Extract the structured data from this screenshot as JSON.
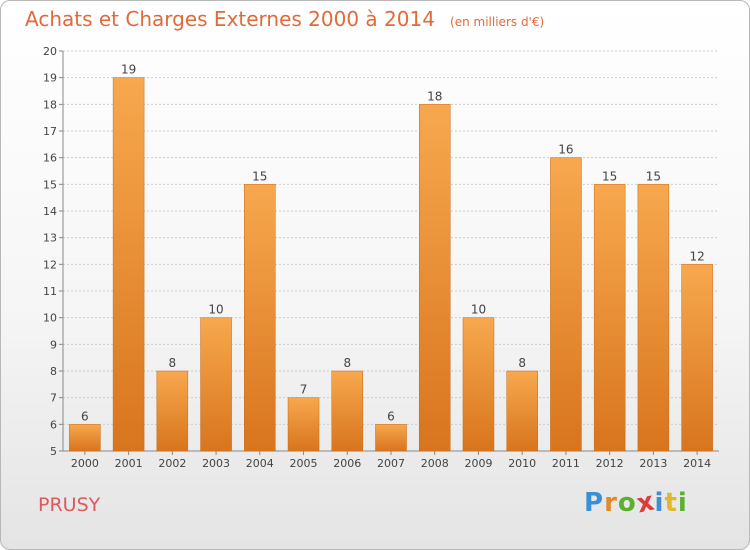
{
  "title": "Achats et Charges Externes 2000 à 2014",
  "subtitle": "(en milliers d'€)",
  "location": "PRUSY",
  "brand": {
    "letters": [
      "P",
      "r",
      "o",
      "x",
      "i",
      "t",
      "i"
    ],
    "colors": [
      "#3a8fd6",
      "#e08a2a",
      "#5cb030",
      "#e03a3a",
      "#3a8fd6",
      "#e0b82a",
      "#5cb030"
    ]
  },
  "colors": {
    "title": "#e06a3a",
    "bar_light": "#f7a84e",
    "bar_dark": "#d8751e",
    "grid": "#cccccc"
  },
  "chart_data": {
    "type": "bar",
    "title": "Achats et Charges Externes 2000 à 2014",
    "subtitle": "(en milliers d'€)",
    "categories": [
      "2000",
      "2001",
      "2002",
      "2003",
      "2004",
      "2005",
      "2006",
      "2007",
      "2008",
      "2009",
      "2010",
      "2011",
      "2012",
      "2013",
      "2014"
    ],
    "values": [
      6,
      19,
      8,
      10,
      15,
      7,
      8,
      6,
      18,
      10,
      8,
      16,
      15,
      15,
      12
    ],
    "ylim": [
      5,
      20
    ],
    "yticks": [
      5,
      6,
      7,
      8,
      9,
      10,
      11,
      12,
      13,
      14,
      15,
      16,
      17,
      18,
      19,
      20
    ],
    "grid": true,
    "xlabel": "",
    "ylabel": ""
  }
}
